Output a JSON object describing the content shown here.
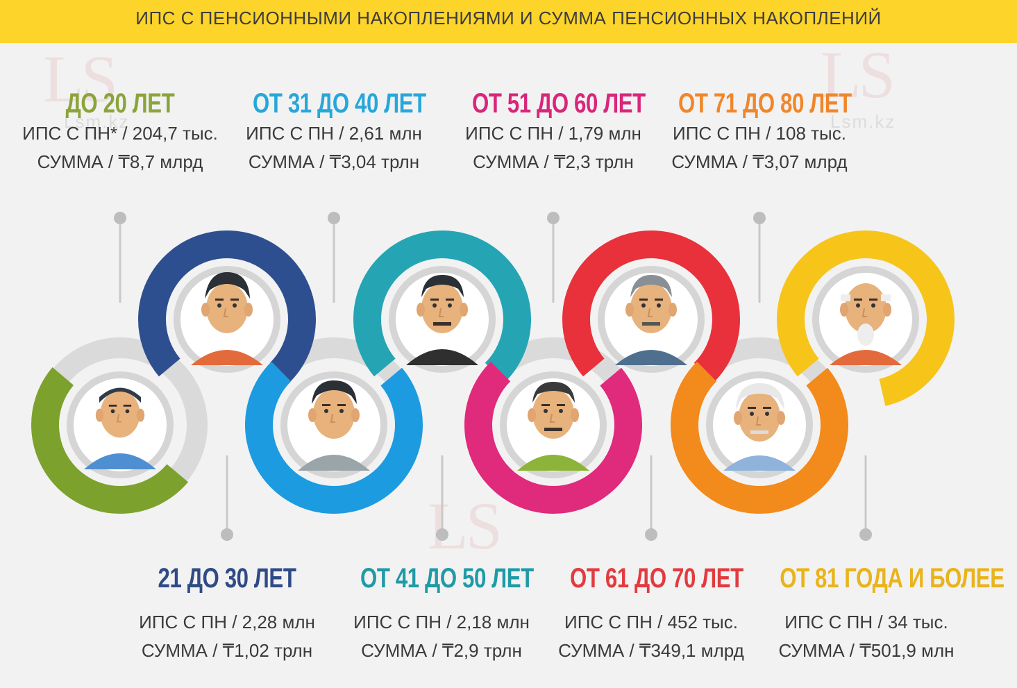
{
  "header": {
    "title": "ИПС С ПЕНСИОННЫМИ НАКОПЛЕНИЯМИ И СУММА ПЕНСИОННЫХ НАКОПЛЕНИЙ"
  },
  "watermark": {
    "logo": "LS",
    "site": "Lsm.kz"
  },
  "colors": {
    "banner": "#fdd42a",
    "green": "#7da12d",
    "navy": "#2e4f8f",
    "blue": "#1d9be0",
    "teal": "#25a5b4",
    "pink": "#e02a7c",
    "red": "#e8313a",
    "orange": "#f28a1c",
    "yellow": "#f7c51a"
  },
  "groups": [
    {
      "id": "age-under-20",
      "heading": "ДО 20 ЛЕТ",
      "ips": "ИПС С ПН* / 204,7 тыс.",
      "sum": "СУММА / ₸8,7 млрд",
      "color": "#8ba43a"
    },
    {
      "id": "age-21-30",
      "heading": "21 ДО 30 ЛЕТ",
      "ips": "ИПС С ПН / 2,28 млн",
      "sum": "СУММА / ₸1,02 трлн",
      "color": "#2f4a86"
    },
    {
      "id": "age-31-40",
      "heading": "ОТ 31 ДО 40 ЛЕТ",
      "ips": "ИПС С ПН / 2,61 млн",
      "sum": "СУММА / ₸3,04 трлн",
      "color": "#27a7d9"
    },
    {
      "id": "age-41-50",
      "heading": "ОТ 41 ДО 50 ЛЕТ",
      "ips": "ИПС С ПН / 2,18 млн",
      "sum": "СУММА / ₸2,9 трлн",
      "color": "#1f9aa6"
    },
    {
      "id": "age-51-60",
      "heading": "ОТ 51 ДО 60 ЛЕТ",
      "ips": "ИПС С ПН / 1,79 млн",
      "sum": "СУММА / ₸2,3 трлн",
      "color": "#d8267a"
    },
    {
      "id": "age-61-70",
      "heading": "ОТ 61 ДО 70 ЛЕТ",
      "ips": "ИПС С ПН / 452 тыс.",
      "sum": "СУММА / ₸349,1 млрд",
      "color": "#e23b3f"
    },
    {
      "id": "age-71-80",
      "heading": "ОТ 71 ДО 80 ЛЕТ",
      "ips": "ИПС С ПН / 108 тыс.",
      "sum": "СУММА / ₸3,07 млрд",
      "color": "#f0862a"
    },
    {
      "id": "age-81-plus",
      "heading": "ОТ 81 ГОДА И БОЛЕЕ",
      "ips": "ИПС С ПН / 34 тыс.",
      "sum": "СУММА / ₸501,9 млн",
      "color": "#e9b31b"
    }
  ]
}
